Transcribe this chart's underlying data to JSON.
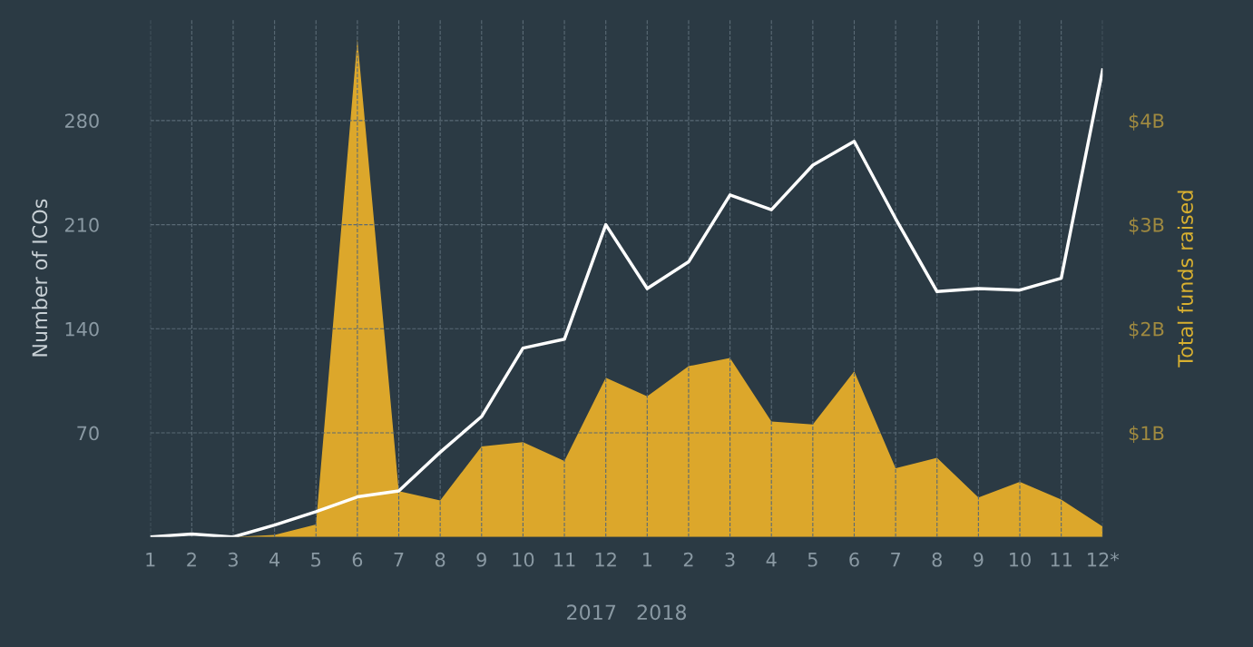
{
  "chart_data": {
    "type": "line",
    "categories": [
      "1",
      "2",
      "3",
      "4",
      "5",
      "6",
      "7",
      "8",
      "9",
      "10",
      "11",
      "12",
      "1",
      "2",
      "3",
      "4",
      "5",
      "6",
      "7",
      "8",
      "9",
      "10",
      "11",
      "12*"
    ],
    "series": [
      {
        "name": null,
        "type": "area",
        "axis": "y2",
        "color": "#f0b429",
        "values": [
          0,
          0,
          0,
          0.02,
          0.12,
          4.78,
          0.44,
          0.35,
          0.87,
          0.91,
          0.73,
          1.53,
          1.35,
          1.64,
          1.72,
          1.11,
          1.08,
          1.59,
          0.66,
          0.76,
          0.38,
          0.53,
          0.36,
          0.1
        ]
      },
      {
        "name": null,
        "color": "#ffffff",
        "values": [
          0,
          2,
          0,
          8,
          17,
          27,
          31,
          57,
          81,
          127,
          133,
          210,
          167,
          185,
          230,
          220,
          250,
          266,
          214,
          165,
          167,
          166,
          174,
          314
        ]
      }
    ],
    "ylabel": "Number of ICOs",
    "y2label": "Total funds raised",
    "ylim": [
      0,
      348
    ],
    "yticks": [
      70,
      140,
      210,
      280
    ],
    "y2lim": [
      0,
      4.97
    ],
    "y2ticks": [
      {
        "value": 1,
        "label": "$1B"
      },
      {
        "value": 2,
        "label": "$2B"
      },
      {
        "value": 3,
        "label": "$3B"
      },
      {
        "value": 4,
        "label": "$4B"
      }
    ],
    "annotations": [
      "2017",
      "2018"
    ],
    "grid": true,
    "line_style": "solid",
    "marker": "none"
  }
}
